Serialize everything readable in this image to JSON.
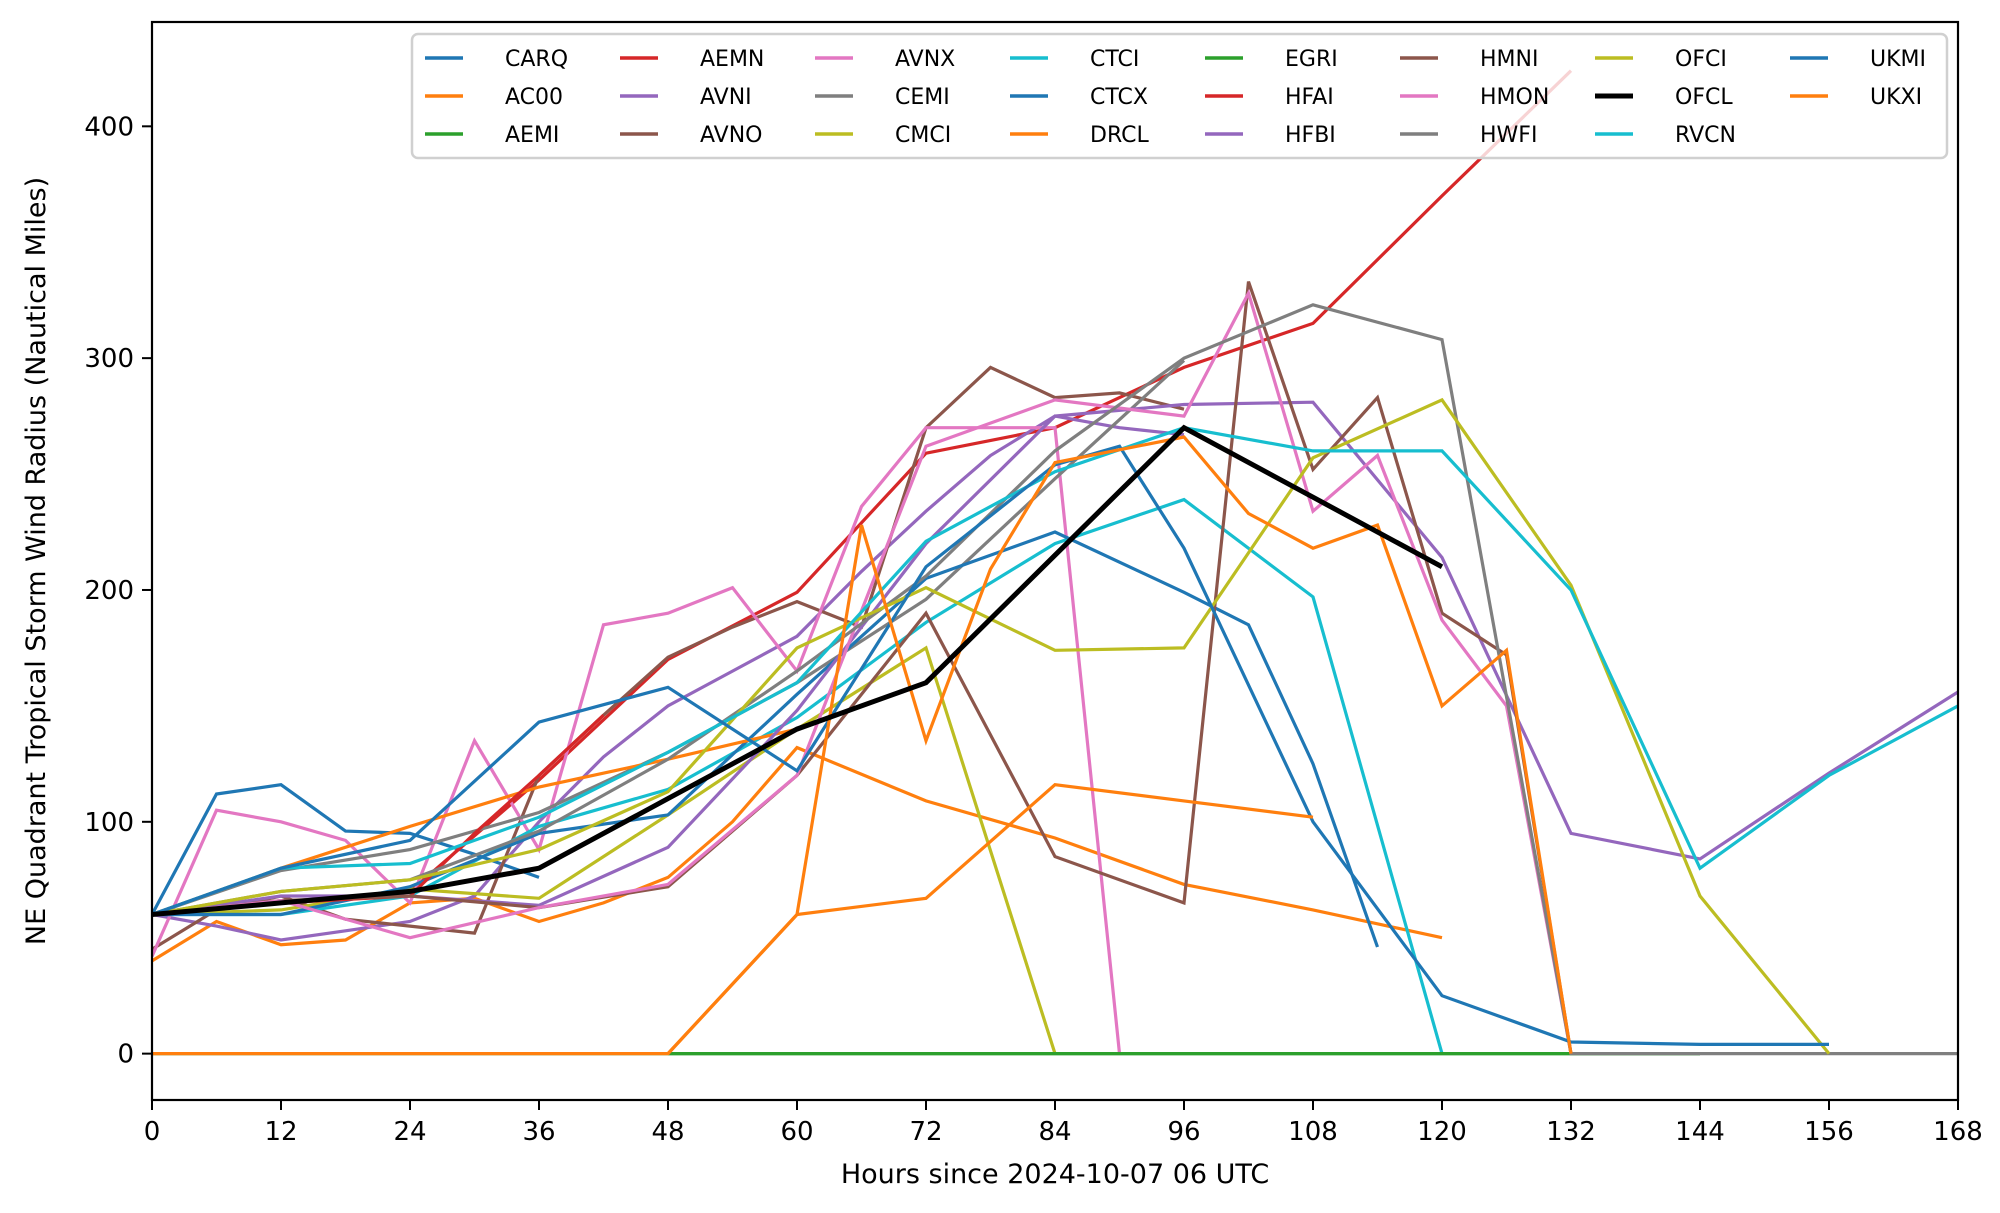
{
  "chart_data": {
    "type": "line",
    "title": "",
    "xlabel": "Hours since 2024-10-07 06 UTC",
    "ylabel": "NE Quadrant Tropical Storm Wind Radius (Nautical Miles)",
    "xlim": [
      0,
      168
    ],
    "ylim": [
      -20,
      445
    ],
    "xticks": [
      0,
      12,
      24,
      36,
      48,
      60,
      72,
      84,
      96,
      108,
      120,
      132,
      144,
      156,
      168
    ],
    "yticks": [
      0,
      100,
      200,
      300,
      400
    ],
    "grid": false,
    "legend_position": "top-right",
    "legend_columns": 8,
    "series": [
      {
        "name": "CARQ",
        "color": "#1f77b4",
        "x": [
          0,
          6,
          12,
          18,
          24,
          30,
          36
        ],
        "y": [
          60,
          112,
          116,
          96,
          95,
          86,
          76
        ]
      },
      {
        "name": "AC00",
        "color": "#ff7f0e",
        "x": [
          0,
          6,
          12,
          18,
          24,
          30,
          36,
          42,
          48,
          54,
          60,
          72,
          84,
          96,
          108,
          120
        ],
        "y": [
          40,
          57,
          47,
          49,
          65,
          67,
          57,
          65,
          76,
          100,
          132,
          109,
          93,
          73,
          62,
          50
        ]
      },
      {
        "name": "AEMI",
        "color": "#2ca02c",
        "x": [
          0,
          12,
          24,
          36,
          48,
          60,
          72,
          84,
          96,
          108,
          120,
          132,
          144
        ],
        "y": [
          0,
          0,
          0,
          0,
          0,
          0,
          0,
          0,
          0,
          0,
          0,
          0,
          0
        ]
      },
      {
        "name": "AEMN",
        "color": "#d62728",
        "x": [
          0,
          12,
          24,
          36,
          48,
          60,
          72,
          84,
          96,
          108,
          120,
          132
        ],
        "y": [
          60,
          65,
          70,
          118,
          170,
          199,
          259,
          270,
          296,
          315,
          370,
          424
        ]
      },
      {
        "name": "AVNI",
        "color": "#9467bd",
        "x": [
          0,
          6,
          12,
          18,
          24,
          30,
          36,
          42,
          48,
          54,
          60,
          66,
          72,
          78,
          84,
          90,
          96
        ],
        "y": [
          60,
          55,
          49,
          53,
          57,
          68,
          100,
          128,
          150,
          165,
          180,
          208,
          234,
          258,
          275,
          270,
          267
        ]
      },
      {
        "name": "AVNO",
        "color": "#8c564b",
        "x": [
          0,
          6,
          12,
          18,
          24,
          30,
          36,
          42,
          48,
          54,
          60,
          66,
          72,
          78,
          84,
          90,
          96
        ],
        "y": [
          45,
          62,
          68,
          58,
          55,
          52,
          120,
          146,
          171,
          184,
          195,
          184,
          270,
          296,
          283,
          285,
          278
        ]
      },
      {
        "name": "AVNX",
        "color": "#e377c2",
        "x": [
          0,
          6,
          12,
          18,
          24,
          30,
          36,
          42,
          48,
          54,
          60,
          66,
          72,
          78,
          84,
          90
        ],
        "y": [
          42,
          105,
          100,
          92,
          65,
          135,
          88,
          185,
          190,
          201,
          165,
          236,
          270,
          270,
          270,
          0
        ]
      },
      {
        "name": "CEMI",
        "color": "#7f7f7f",
        "x": [
          0,
          12,
          24,
          36,
          48,
          60,
          72,
          84,
          96
        ],
        "y": [
          60,
          79,
          88,
          104,
          130,
          160,
          196,
          248,
          299
        ]
      },
      {
        "name": "CMCI",
        "color": "#bcbd22",
        "x": [
          0,
          12,
          24,
          36,
          48,
          60,
          72,
          84
        ],
        "y": [
          60,
          62,
          71,
          67,
          103,
          140,
          175,
          0
        ]
      },
      {
        "name": "CTCI",
        "color": "#17becf",
        "x": [
          0,
          12,
          24,
          36,
          48,
          60,
          72,
          84,
          96,
          108,
          120
        ],
        "y": [
          60,
          60,
          68,
          98,
          114,
          145,
          186,
          220,
          239,
          197,
          0
        ]
      },
      {
        "name": "CTCX",
        "color": "#1f77b4",
        "x": [
          0,
          12,
          24,
          36,
          48,
          60,
          72,
          84,
          96,
          102,
          108,
          114
        ],
        "y": [
          60,
          60,
          72,
          95,
          103,
          155,
          205,
          225,
          199,
          185,
          125,
          46
        ]
      },
      {
        "name": "DRCL",
        "color": "#ff7f0e",
        "x": [
          0,
          12,
          24,
          36,
          48,
          60,
          72
        ],
        "y": [
          60,
          80,
          98,
          115,
          127,
          140,
          160
        ]
      },
      {
        "name": "EGRI",
        "color": "#2ca02c",
        "x": [
          48,
          60,
          72,
          84,
          96,
          108,
          120,
          132,
          144
        ],
        "y": [
          0,
          0,
          0,
          0,
          0,
          0,
          0,
          0,
          0
        ]
      },
      {
        "name": "HFAI",
        "color": "#d62728",
        "x": [
          0,
          12,
          24,
          30,
          36,
          42
        ],
        "y": [
          60,
          65,
          68,
          95,
          120,
          146
        ]
      },
      {
        "name": "HFBI",
        "color": "#9467bd",
        "x": [
          0,
          12,
          24,
          36,
          48,
          60,
          72,
          84,
          96,
          108,
          120,
          132,
          144,
          156,
          168
        ],
        "y": [
          60,
          68,
          68,
          64,
          89,
          148,
          220,
          275,
          280,
          281,
          214,
          95,
          84,
          121,
          156
        ]
      },
      {
        "name": "HMNI",
        "color": "#8c564b",
        "x": [
          0,
          12,
          24,
          36,
          48,
          60,
          72,
          84,
          96,
          102,
          108,
          114,
          120,
          126,
          132
        ],
        "y": [
          60,
          66,
          68,
          63,
          72,
          120,
          190,
          85,
          65,
          333,
          252,
          283,
          190,
          172,
          0
        ]
      },
      {
        "name": "HMON",
        "color": "#e377c2",
        "x": [
          0,
          12,
          24,
          36,
          48,
          60,
          72,
          84,
          96,
          102,
          108,
          114,
          120,
          126,
          132
        ],
        "y": [
          60,
          66,
          50,
          63,
          73,
          120,
          262,
          282,
          275,
          328,
          234,
          258,
          187,
          150,
          0
        ]
      },
      {
        "name": "HWFI",
        "color": "#7f7f7f",
        "x": [
          0,
          12,
          24,
          36,
          48,
          60,
          72,
          84,
          96,
          108,
          120,
          132,
          144,
          156,
          168
        ],
        "y": [
          60,
          70,
          75,
          96,
          127,
          165,
          206,
          260,
          300,
          323,
          308,
          0,
          0,
          0,
          0
        ]
      },
      {
        "name": "OFCI",
        "color": "#bcbd22",
        "x": [
          0,
          12,
          24,
          36,
          48,
          60,
          72,
          84,
          96,
          108,
          120,
          132,
          144,
          156
        ],
        "y": [
          60,
          70,
          75,
          88,
          113,
          175,
          201,
          174,
          175,
          257,
          282,
          202,
          68,
          0
        ]
      },
      {
        "name": "OFCL",
        "color": "#000000",
        "x": [
          0,
          12,
          24,
          36,
          48,
          60,
          72,
          84,
          96,
          108,
          120
        ],
        "y": [
          60,
          65,
          70,
          80,
          110,
          140,
          160,
          215,
          270,
          240,
          210
        ]
      },
      {
        "name": "RVCN",
        "color": "#17becf",
        "x": [
          0,
          12,
          24,
          36,
          48,
          60,
          72,
          84,
          96,
          108,
          120,
          132,
          144,
          156,
          168
        ],
        "y": [
          60,
          80,
          82,
          102,
          130,
          160,
          221,
          251,
          270,
          260,
          260,
          200,
          80,
          120,
          150
        ]
      },
      {
        "name": "UKMI",
        "color": "#1f77b4",
        "x": [
          0,
          12,
          24,
          36,
          48,
          60,
          72,
          84,
          90,
          96,
          108,
          120,
          132,
          144,
          156
        ],
        "y": [
          60,
          80,
          92,
          143,
          158,
          122,
          210,
          254,
          262,
          218,
          100,
          25,
          5,
          4,
          4
        ]
      },
      {
        "name": "UKXI",
        "color": "#ff7f0e",
        "x": [
          0,
          12,
          24,
          36,
          48,
          60,
          66,
          72,
          78,
          84,
          96,
          102,
          108,
          114,
          120,
          126,
          132
        ],
        "y": [
          0,
          0,
          0,
          0,
          0,
          60,
          228,
          135,
          209,
          255,
          266,
          233,
          218,
          228,
          150,
          174,
          0
        ]
      },
      {
        "name": "UKXI-b",
        "color": "#ff7f0e",
        "x": [
          48,
          60,
          72,
          84,
          96,
          108
        ],
        "y": [
          0,
          60,
          67,
          116,
          109,
          102
        ]
      }
    ],
    "legend": [
      {
        "name": "CARQ",
        "color": "#1f77b4"
      },
      {
        "name": "AC00",
        "color": "#ff7f0e"
      },
      {
        "name": "AEMI",
        "color": "#2ca02c"
      },
      {
        "name": "AEMN",
        "color": "#d62728"
      },
      {
        "name": "AVNI",
        "color": "#9467bd"
      },
      {
        "name": "AVNO",
        "color": "#8c564b"
      },
      {
        "name": "AVNX",
        "color": "#e377c2"
      },
      {
        "name": "CEMI",
        "color": "#7f7f7f"
      },
      {
        "name": "CMCI",
        "color": "#bcbd22"
      },
      {
        "name": "CTCI",
        "color": "#17becf"
      },
      {
        "name": "CTCX",
        "color": "#1f77b4"
      },
      {
        "name": "DRCL",
        "color": "#ff7f0e"
      },
      {
        "name": "EGRI",
        "color": "#2ca02c"
      },
      {
        "name": "HFAI",
        "color": "#d62728"
      },
      {
        "name": "HFBI",
        "color": "#9467bd"
      },
      {
        "name": "HMNI",
        "color": "#8c564b"
      },
      {
        "name": "HMON",
        "color": "#e377c2"
      },
      {
        "name": "HWFI",
        "color": "#7f7f7f"
      },
      {
        "name": "OFCI",
        "color": "#bcbd22"
      },
      {
        "name": "OFCL",
        "color": "#000000"
      },
      {
        "name": "RVCN",
        "color": "#17becf"
      },
      {
        "name": "UKMI",
        "color": "#1f77b4"
      },
      {
        "name": "UKXI",
        "color": "#ff7f0e"
      }
    ]
  }
}
